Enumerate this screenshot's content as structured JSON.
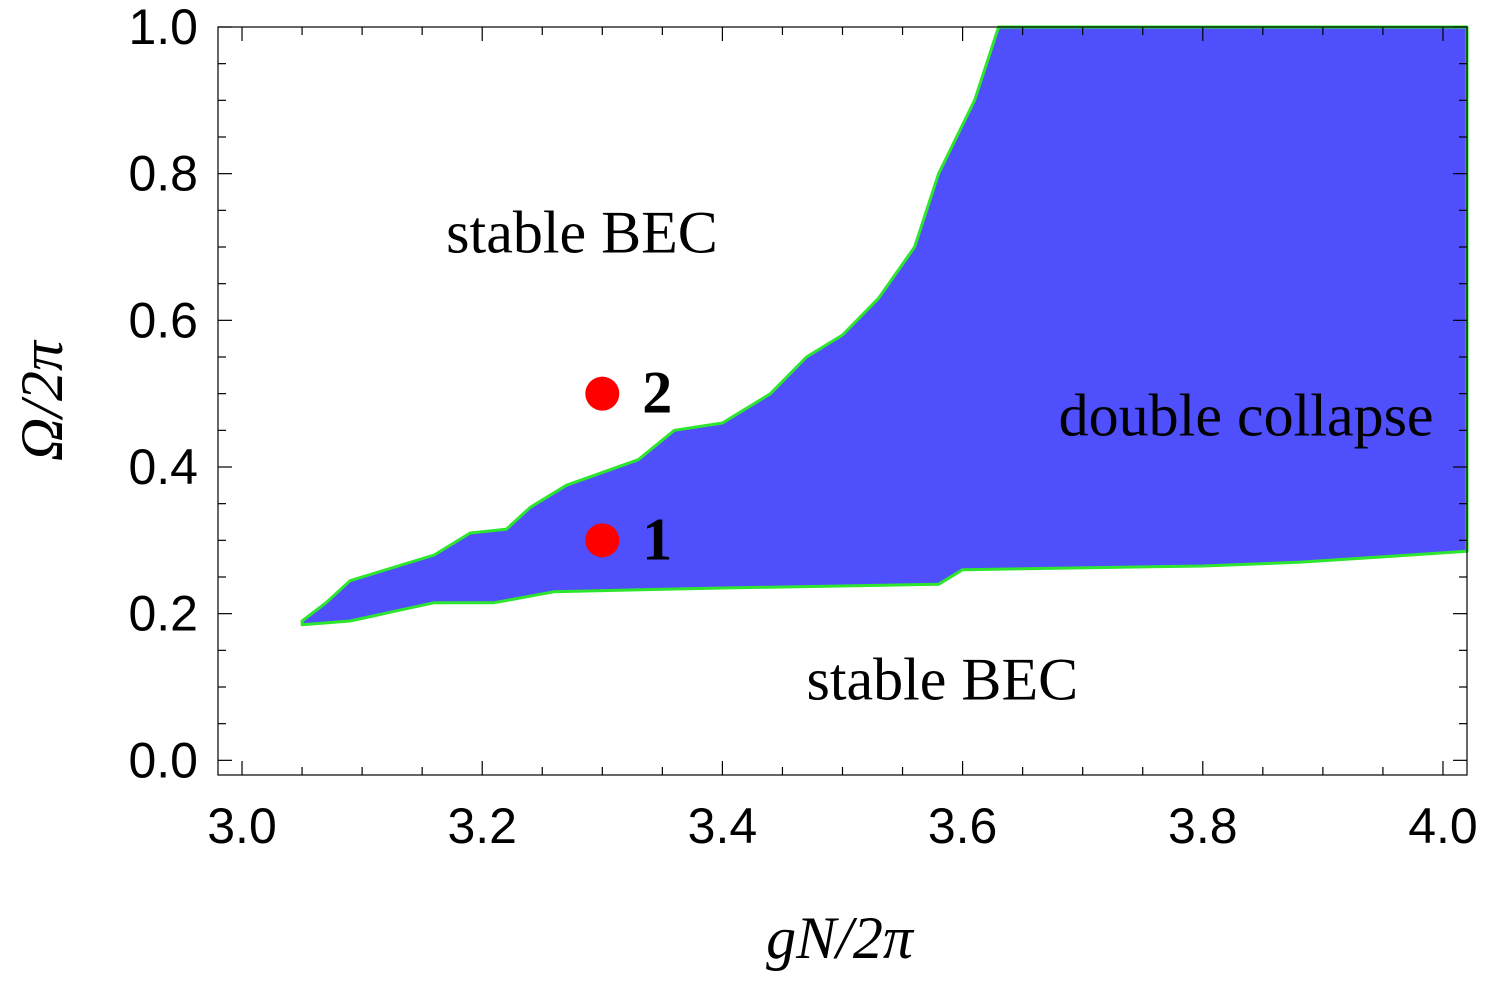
{
  "chart_data": {
    "type": "area",
    "xlabel": "gN/2π",
    "ylabel": "Ω/2π",
    "xlim": [
      2.98,
      4.02
    ],
    "ylim": [
      -0.02,
      1.0
    ],
    "x_ticks": [
      "3.0",
      "3.2",
      "3.4",
      "3.6",
      "3.8",
      "4.0"
    ],
    "x_tick_values": [
      3.0,
      3.2,
      3.4,
      3.6,
      3.8,
      4.0
    ],
    "y_ticks": [
      "0.0",
      "0.2",
      "0.4",
      "0.6",
      "0.8",
      "1.0"
    ],
    "y_tick_values": [
      0.0,
      0.2,
      0.4,
      0.6,
      0.8,
      1.0
    ],
    "grid": false,
    "region_color": "#4f4ffc",
    "edge_color": "#2ee62e",
    "marker_color": "#fe0000",
    "region": {
      "name": "double collapse",
      "upper_boundary": [
        [
          3.05,
          0.19
        ],
        [
          3.07,
          0.215
        ],
        [
          3.09,
          0.245
        ],
        [
          3.12,
          0.26
        ],
        [
          3.16,
          0.28
        ],
        [
          3.19,
          0.31
        ],
        [
          3.22,
          0.315
        ],
        [
          3.24,
          0.345
        ],
        [
          3.27,
          0.375
        ],
        [
          3.33,
          0.41
        ],
        [
          3.36,
          0.45
        ],
        [
          3.4,
          0.46
        ],
        [
          3.44,
          0.5
        ],
        [
          3.47,
          0.55
        ],
        [
          3.5,
          0.58
        ],
        [
          3.53,
          0.63
        ],
        [
          3.56,
          0.7
        ],
        [
          3.58,
          0.8
        ],
        [
          3.61,
          0.9
        ],
        [
          3.63,
          1.0
        ],
        [
          4.02,
          1.0
        ]
      ],
      "lower_boundary": [
        [
          3.05,
          0.185
        ],
        [
          3.09,
          0.19
        ],
        [
          3.16,
          0.215
        ],
        [
          3.21,
          0.215
        ],
        [
          3.26,
          0.23
        ],
        [
          3.4,
          0.235
        ],
        [
          3.58,
          0.24
        ],
        [
          3.6,
          0.26
        ],
        [
          3.8,
          0.265
        ],
        [
          3.88,
          0.27
        ],
        [
          4.02,
          0.285
        ]
      ]
    },
    "annotations": [
      {
        "text": "stable BEC",
        "x": 3.17,
        "y": 0.72
      },
      {
        "text": "stable BEC",
        "x": 3.47,
        "y": 0.11
      },
      {
        "text": "double collapse",
        "x": 3.68,
        "y": 0.47
      }
    ],
    "points": [
      {
        "label": "1",
        "x": 3.3,
        "y": 0.3
      },
      {
        "label": "2",
        "x": 3.3,
        "y": 0.5
      }
    ]
  }
}
